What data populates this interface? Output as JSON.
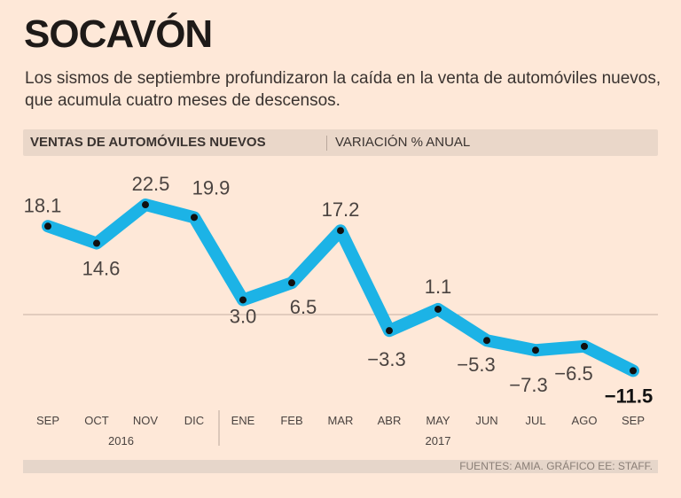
{
  "title": "SOCAVÓN",
  "subtitle": "Los sismos de septiembre profundizaron la caída en la venta de automóviles nuevos, que acumula cuatro meses de descensos.",
  "header": {
    "metric": "VENTAS DE AUTOMÓVILES NUEVOS",
    "unit": "VARIACIÓN % ANUAL"
  },
  "footer": "FUENTES: AMIA. GRÁFICO EE: STAFF.",
  "colors": {
    "line": "#1cb3e6",
    "background": "#fee8d8",
    "header_bar": "#ead7c9"
  },
  "chart_data": {
    "type": "line",
    "title": "VENTAS DE AUTOMÓVILES NUEVOS",
    "ylabel": "VARIACIÓN % ANUAL",
    "categories": [
      "SEP",
      "OCT",
      "NOV",
      "DIC",
      "ENE",
      "FEB",
      "MAR",
      "ABR",
      "MAY",
      "JUN",
      "JUL",
      "AGO",
      "SEP"
    ],
    "year_groups": [
      {
        "label": "2016",
        "count": 4
      },
      {
        "label": "2017",
        "count": 9
      }
    ],
    "values": [
      18.1,
      14.6,
      22.5,
      19.9,
      3.0,
      6.5,
      17.2,
      -3.3,
      1.1,
      -5.3,
      -7.3,
      -6.5,
      -11.5
    ],
    "value_labels": [
      "18.1",
      "14.6",
      "22.5",
      "19.9",
      "3.0",
      "6.5",
      "17.2",
      "−3.3",
      "1.1",
      "−5.3",
      "−7.3",
      "−6.5",
      "−11.5"
    ],
    "reference_line": 0,
    "ylim": [
      -11.5,
      22.5
    ],
    "grid": false
  }
}
